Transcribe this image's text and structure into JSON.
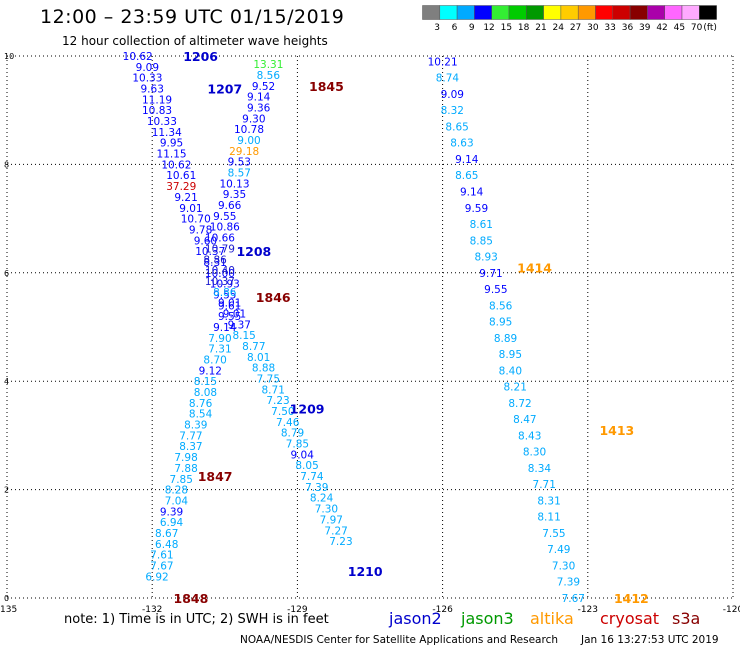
{
  "header": {
    "title": "12:00 – 23:59 UTC 01/15/2019",
    "subtitle": "12 hour collection of altimeter wave heights"
  },
  "colorbar": {
    "unit": "(ft)",
    "bins": [
      {
        "color": "#7f7f7f",
        "label": "3"
      },
      {
        "color": "#00ffff",
        "label": "6"
      },
      {
        "color": "#00aaff",
        "label": "9"
      },
      {
        "color": "#0000ff",
        "label": "12"
      },
      {
        "color": "#33ee33",
        "label": "15"
      },
      {
        "color": "#00cc00",
        "label": "18"
      },
      {
        "color": "#009900",
        "label": "21"
      },
      {
        "color": "#ffff00",
        "label": "24"
      },
      {
        "color": "#ffcc00",
        "label": "27"
      },
      {
        "color": "#ff9900",
        "label": "30"
      },
      {
        "color": "#ff0000",
        "label": "33"
      },
      {
        "color": "#cc0000",
        "label": "36"
      },
      {
        "color": "#880000",
        "label": "39"
      },
      {
        "color": "#aa00aa",
        "label": "42"
      },
      {
        "color": "#ff66ff",
        "label": "45"
      },
      {
        "color": "#ffaaff",
        "label": "70"
      },
      {
        "color": "#000000",
        "label": ""
      }
    ]
  },
  "footer": {
    "note": "note:  1) Time is in UTC;  2) SWH is in feet",
    "credit": "NOAA/NESDIS Center for Satellite Applications and Research",
    "timestamp": "Jan 16 13:27:53 UTC 2019",
    "satellites": [
      {
        "name": "jason2",
        "color": "#0000cc"
      },
      {
        "name": "jason3",
        "color": "#009900"
      },
      {
        "name": "altika",
        "color": "#ff9900"
      },
      {
        "name": "cryosat",
        "color": "#cc0000"
      },
      {
        "name": "s3a",
        "color": "#880000"
      }
    ]
  },
  "chart_data": {
    "type": "scatter",
    "title": "12:00 – 23:59 UTC 01/15/2019",
    "subtitle": "12 hour collection of altimeter wave heights",
    "xlim": [
      -135,
      -120
    ],
    "ylim": [
      0,
      10
    ],
    "x_ticks": [
      -135,
      -132,
      -129,
      -126,
      -123,
      -120
    ],
    "y_ticks": [
      0,
      2,
      4,
      6,
      8,
      10
    ],
    "grid": true,
    "colors": {
      "c6": "#00aaff",
      "c9": "#0000ff",
      "c12": "#0000ff",
      "c15": "#33ee33",
      "c27": "#ff9900",
      "c36": "#cc0000",
      "c_mixed": "#1a1acc",
      "pass_jason2": "#0000cc",
      "pass_altika": "#ff9900",
      "pass_s3a": "#880000"
    },
    "series": [
      {
        "points": [
          [
            -132.3,
            10.0,
            "10.62",
            "c12"
          ],
          [
            -132.1,
            9.8,
            "9.09",
            "c12"
          ],
          [
            -132.1,
            9.6,
            "10.33",
            "c12"
          ],
          [
            -132.0,
            9.4,
            "9.63",
            "c12"
          ],
          [
            -131.9,
            9.2,
            "11.19",
            "c12"
          ],
          [
            -131.9,
            9.0,
            "10.83",
            "c12"
          ],
          [
            -131.8,
            8.8,
            "10.33",
            "c12"
          ],
          [
            -131.7,
            8.6,
            "11.34",
            "c12"
          ],
          [
            -131.6,
            8.4,
            "9.95",
            "c12"
          ],
          [
            -131.6,
            8.2,
            "11.15",
            "c12"
          ],
          [
            -131.5,
            8.0,
            "10.62",
            "c12"
          ],
          [
            -131.4,
            7.8,
            "10.61",
            "c12"
          ],
          [
            -131.4,
            7.6,
            "37.29",
            "c36"
          ],
          [
            -131.3,
            7.4,
            "9.21",
            "c12"
          ],
          [
            -131.2,
            7.2,
            "9.01",
            "c12"
          ],
          [
            -131.1,
            7.0,
            "10.70",
            "c12"
          ],
          [
            -131.0,
            6.8,
            "9.78",
            "c12"
          ],
          [
            -130.9,
            6.6,
            "9.60",
            "c12"
          ],
          [
            -130.8,
            6.4,
            "10.37",
            "c12"
          ],
          [
            -130.7,
            6.2,
            "8.31",
            "c9"
          ],
          [
            -130.6,
            6.0,
            "10.00",
            "c12"
          ],
          [
            -130.5,
            5.8,
            "10.93",
            "c12"
          ],
          [
            -130.5,
            5.6,
            "9.55",
            "c12"
          ],
          [
            -130.4,
            5.4,
            "9.61",
            "c12"
          ],
          [
            -130.4,
            5.2,
            "9.55",
            "c12"
          ],
          [
            -130.5,
            5.0,
            "9.14",
            "c12"
          ],
          [
            -130.6,
            4.8,
            "7.90",
            "c6"
          ],
          [
            -130.6,
            4.6,
            "7.31",
            "c6"
          ],
          [
            -130.7,
            4.4,
            "8.70",
            "c6"
          ],
          [
            -130.8,
            4.2,
            "9.12",
            "c9"
          ],
          [
            -130.9,
            4.0,
            "8.15",
            "c6"
          ],
          [
            -130.9,
            3.8,
            "8.08",
            "c6"
          ],
          [
            -131.0,
            3.6,
            "8.76",
            "c6"
          ],
          [
            -131.0,
            3.4,
            "8.54",
            "c6"
          ],
          [
            -131.1,
            3.2,
            "8.39",
            "c6"
          ],
          [
            -131.2,
            3.0,
            "7.77",
            "c6"
          ],
          [
            -131.2,
            2.8,
            "8.37",
            "c6"
          ],
          [
            -131.3,
            2.6,
            "7.98",
            "c6"
          ],
          [
            -131.3,
            2.4,
            "7.88",
            "c6"
          ],
          [
            -131.4,
            2.2,
            "7.85",
            "c6"
          ],
          [
            -131.5,
            2.0,
            "8.28",
            "c6"
          ],
          [
            -131.5,
            1.8,
            "7.04",
            "c6"
          ],
          [
            -131.6,
            1.6,
            "9.39",
            "c9"
          ],
          [
            -131.6,
            1.4,
            "6.94",
            "c6"
          ],
          [
            -131.7,
            1.2,
            "8.67",
            "c6"
          ],
          [
            -131.7,
            1.0,
            "6.48",
            "c6"
          ],
          [
            -131.8,
            0.8,
            "7.61",
            "c6"
          ],
          [
            -131.8,
            0.6,
            "7.67",
            "c6"
          ],
          [
            -131.9,
            0.4,
            "6.92",
            "c6"
          ]
        ]
      },
      {
        "points": [
          [
            -129.6,
            9.85,
            "13.31",
            "c15"
          ],
          [
            -129.6,
            9.65,
            "8.56",
            "c6"
          ],
          [
            -129.7,
            9.45,
            "9.52",
            "c9"
          ],
          [
            -129.8,
            9.25,
            "9.14",
            "c9"
          ],
          [
            -129.8,
            9.05,
            "9.36",
            "c9"
          ],
          [
            -129.9,
            8.85,
            "9.30",
            "c9"
          ],
          [
            -130.0,
            8.65,
            "10.78",
            "c12"
          ],
          [
            -130.0,
            8.45,
            "9.00",
            "c6"
          ],
          [
            -130.1,
            8.25,
            "29.18",
            "c27"
          ],
          [
            -130.2,
            8.05,
            "9.53",
            "c9"
          ],
          [
            -130.2,
            7.85,
            "8.57",
            "c6"
          ],
          [
            -130.3,
            7.65,
            "10.13",
            "c12"
          ],
          [
            -130.3,
            7.45,
            "9.35",
            "c9"
          ],
          [
            -130.4,
            7.25,
            "9.66",
            "c9"
          ],
          [
            -130.5,
            7.05,
            "9.55",
            "c9"
          ],
          [
            -130.5,
            6.85,
            "10.86",
            "c12"
          ],
          [
            -130.6,
            6.65,
            "10.66",
            "c12"
          ],
          [
            -130.6,
            6.45,
            "10.79",
            "c_mixed"
          ],
          [
            -130.7,
            6.25,
            "8.86",
            "c_mixed"
          ],
          [
            -130.6,
            6.05,
            "10.40",
            "c_mixed"
          ],
          [
            -130.6,
            5.85,
            "10.37",
            "c_mixed"
          ],
          [
            -130.5,
            5.65,
            "8.86",
            "c6"
          ],
          [
            -130.4,
            5.45,
            "9.01",
            "c9"
          ],
          [
            -130.3,
            5.25,
            "9.01",
            "c9"
          ],
          [
            -130.2,
            5.05,
            "9.37",
            "c9"
          ],
          [
            -130.1,
            4.85,
            "8.15",
            "c6"
          ],
          [
            -129.9,
            4.65,
            "8.77",
            "c6"
          ],
          [
            -129.8,
            4.45,
            "8.01",
            "c6"
          ],
          [
            -129.7,
            4.25,
            "8.88",
            "c6"
          ],
          [
            -129.6,
            4.05,
            "7.75",
            "c6"
          ],
          [
            -129.5,
            3.85,
            "8.71",
            "c6"
          ],
          [
            -129.4,
            3.65,
            "7.23",
            "c6"
          ],
          [
            -129.3,
            3.45,
            "7.50",
            "c6"
          ],
          [
            -129.2,
            3.25,
            "7.46",
            "c6"
          ],
          [
            -129.1,
            3.05,
            "8.79",
            "c6"
          ],
          [
            -129.0,
            2.85,
            "7.85",
            "c6"
          ],
          [
            -128.9,
            2.65,
            "9.04",
            "c9"
          ],
          [
            -128.8,
            2.45,
            "8.05",
            "c6"
          ],
          [
            -128.7,
            2.25,
            "7.74",
            "c6"
          ],
          [
            -128.6,
            2.05,
            "7.39",
            "c6"
          ],
          [
            -128.5,
            1.85,
            "8.24",
            "c6"
          ],
          [
            -128.4,
            1.65,
            "7.30",
            "c6"
          ],
          [
            -128.3,
            1.45,
            "7.97",
            "c6"
          ],
          [
            -128.2,
            1.25,
            "7.27",
            "c6"
          ],
          [
            -128.1,
            1.05,
            "7.23",
            "c6"
          ]
        ]
      },
      {
        "points": [
          [
            -126.0,
            9.9,
            "10.21",
            "c12"
          ],
          [
            -125.9,
            9.6,
            "8.74",
            "c6"
          ],
          [
            -125.8,
            9.3,
            "9.09",
            "c9"
          ],
          [
            -125.8,
            9.0,
            "8.32",
            "c6"
          ],
          [
            -125.7,
            8.7,
            "8.65",
            "c6"
          ],
          [
            -125.6,
            8.4,
            "8.63",
            "c6"
          ],
          [
            -125.5,
            8.1,
            "9.14",
            "c9"
          ],
          [
            -125.5,
            7.8,
            "8.65",
            "c6"
          ],
          [
            -125.4,
            7.5,
            "9.14",
            "c9"
          ],
          [
            -125.3,
            7.2,
            "9.59",
            "c9"
          ],
          [
            -125.2,
            6.9,
            "8.61",
            "c6"
          ],
          [
            -125.2,
            6.6,
            "8.85",
            "c6"
          ],
          [
            -125.1,
            6.3,
            "8.93",
            "c6"
          ],
          [
            -125.0,
            6.0,
            "9.71",
            "c9"
          ],
          [
            -124.9,
            5.7,
            "9.55",
            "c9"
          ],
          [
            -124.8,
            5.4,
            "8.56",
            "c6"
          ],
          [
            -124.8,
            5.1,
            "8.95",
            "c6"
          ],
          [
            -124.7,
            4.8,
            "8.89",
            "c6"
          ],
          [
            -124.6,
            4.5,
            "8.95",
            "c6"
          ],
          [
            -124.6,
            4.2,
            "8.40",
            "c6"
          ],
          [
            -124.5,
            3.9,
            "8.21",
            "c6"
          ],
          [
            -124.4,
            3.6,
            "8.72",
            "c6"
          ],
          [
            -124.3,
            3.3,
            "8.47",
            "c6"
          ],
          [
            -124.2,
            3.0,
            "8.43",
            "c6"
          ],
          [
            -124.1,
            2.7,
            "8.30",
            "c6"
          ],
          [
            -124.0,
            2.4,
            "8.34",
            "c6"
          ],
          [
            -123.9,
            2.1,
            "7.71",
            "c6"
          ],
          [
            -123.8,
            1.8,
            "8.31",
            "c6"
          ],
          [
            -123.8,
            1.5,
            "8.11",
            "c6"
          ],
          [
            -123.7,
            1.2,
            "7.55",
            "c6"
          ],
          [
            -123.6,
            0.9,
            "7.49",
            "c6"
          ],
          [
            -123.5,
            0.6,
            "7.30",
            "c6"
          ],
          [
            -123.4,
            0.3,
            "7.39",
            "c6"
          ],
          [
            -123.3,
            0.0,
            "7.67",
            "c6"
          ]
        ]
      }
    ],
    "passes": [
      {
        "label": "1206",
        "satellite": "jason2",
        "x": -131.0,
        "y": 10.0
      },
      {
        "label": "1207",
        "satellite": "jason2",
        "x": -130.5,
        "y": 9.4
      },
      {
        "label": "1845",
        "satellite": "s3a",
        "x": -128.4,
        "y": 9.45
      },
      {
        "label": "1208",
        "satellite": "jason2",
        "x": -129.9,
        "y": 6.4
      },
      {
        "label": "1846",
        "satellite": "s3a",
        "x": -129.5,
        "y": 5.55
      },
      {
        "label": "1209",
        "satellite": "jason2",
        "x": -128.8,
        "y": 3.5
      },
      {
        "label": "1847",
        "satellite": "s3a",
        "x": -130.7,
        "y": 2.25
      },
      {
        "label": "1210",
        "satellite": "jason2",
        "x": -127.6,
        "y": 0.5
      },
      {
        "label": "1848",
        "satellite": "s3a",
        "x": -131.2,
        "y": 0.0
      },
      {
        "label": "1414",
        "satellite": "altika",
        "x": -124.1,
        "y": 6.1
      },
      {
        "label": "1413",
        "satellite": "altika",
        "x": -122.4,
        "y": 3.1
      },
      {
        "label": "1412",
        "satellite": "altika",
        "x": -122.1,
        "y": 0.0
      }
    ]
  }
}
